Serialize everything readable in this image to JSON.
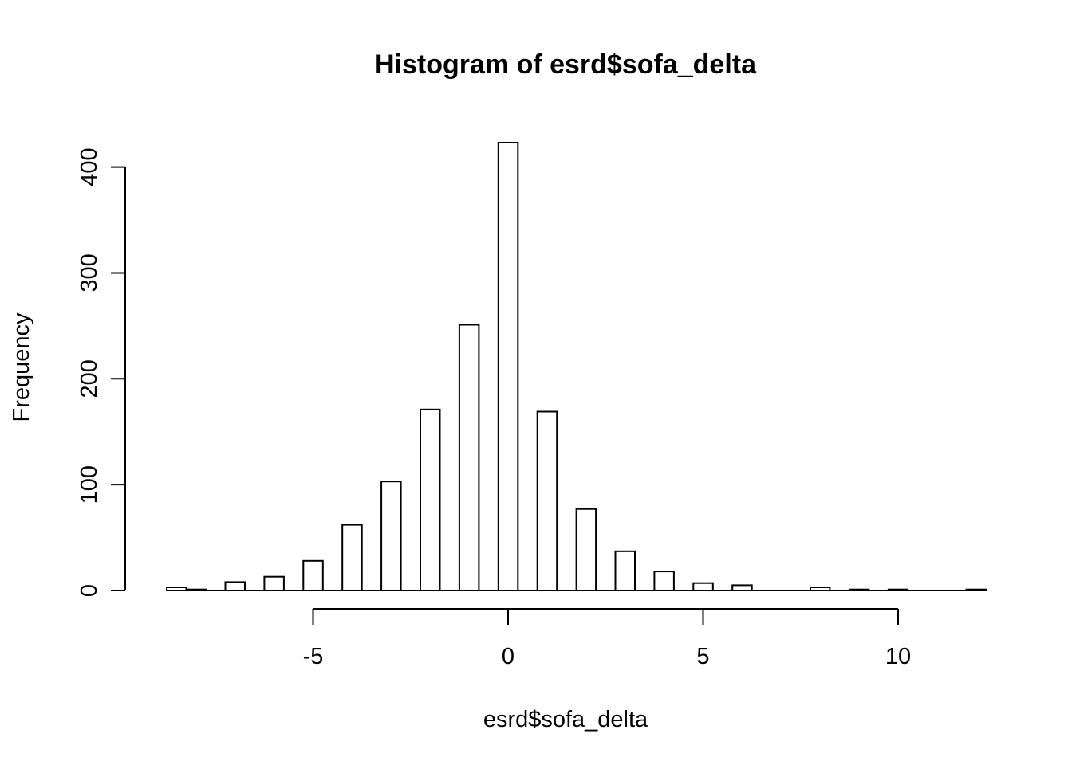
{
  "chart_data": {
    "type": "bar",
    "title": "Histogram of esrd$sofa_delta",
    "xlabel": "esrd$sofa_delta",
    "ylabel": "Frequency",
    "xlim": [
      -5,
      10
    ],
    "ylim": [
      0,
      400
    ],
    "x_ticks": [
      -5,
      0,
      5,
      10
    ],
    "x_tick_labels": [
      "-5",
      "0",
      "5",
      "10"
    ],
    "y_ticks": [
      0,
      100,
      200,
      300,
      400
    ],
    "y_tick_labels": [
      "0",
      "100",
      "200",
      "300",
      "400"
    ],
    "bar_width": 0.5,
    "bins": [
      {
        "x": -8.5,
        "count": 3
      },
      {
        "x": -8.0,
        "count": 1
      },
      {
        "x": -7.5,
        "count": 0
      },
      {
        "x": -7.0,
        "count": 8
      },
      {
        "x": -6.5,
        "count": 0
      },
      {
        "x": -6.0,
        "count": 13
      },
      {
        "x": -5.5,
        "count": 0
      },
      {
        "x": -5.0,
        "count": 28
      },
      {
        "x": -4.5,
        "count": 0
      },
      {
        "x": -4.0,
        "count": 62
      },
      {
        "x": -3.5,
        "count": 0
      },
      {
        "x": -3.0,
        "count": 103
      },
      {
        "x": -2.5,
        "count": 0
      },
      {
        "x": -2.0,
        "count": 171
      },
      {
        "x": -1.5,
        "count": 0
      },
      {
        "x": -1.0,
        "count": 251
      },
      {
        "x": -0.5,
        "count": 0
      },
      {
        "x": 0.0,
        "count": 423
      },
      {
        "x": 0.5,
        "count": 0
      },
      {
        "x": 1.0,
        "count": 169
      },
      {
        "x": 1.5,
        "count": 0
      },
      {
        "x": 2.0,
        "count": 77
      },
      {
        "x": 2.5,
        "count": 0
      },
      {
        "x": 3.0,
        "count": 37
      },
      {
        "x": 3.5,
        "count": 0
      },
      {
        "x": 4.0,
        "count": 18
      },
      {
        "x": 4.5,
        "count": 0
      },
      {
        "x": 5.0,
        "count": 7
      },
      {
        "x": 5.5,
        "count": 0
      },
      {
        "x": 6.0,
        "count": 5
      },
      {
        "x": 6.5,
        "count": 0
      },
      {
        "x": 7.0,
        "count": 0
      },
      {
        "x": 7.5,
        "count": 0
      },
      {
        "x": 8.0,
        "count": 3
      },
      {
        "x": 8.5,
        "count": 0
      },
      {
        "x": 9.0,
        "count": 1
      },
      {
        "x": 9.5,
        "count": 0
      },
      {
        "x": 10.0,
        "count": 1
      },
      {
        "x": 10.5,
        "count": 0
      },
      {
        "x": 11.0,
        "count": 0
      },
      {
        "x": 11.5,
        "count": 0
      },
      {
        "x": 12.0,
        "count": 1
      }
    ]
  }
}
